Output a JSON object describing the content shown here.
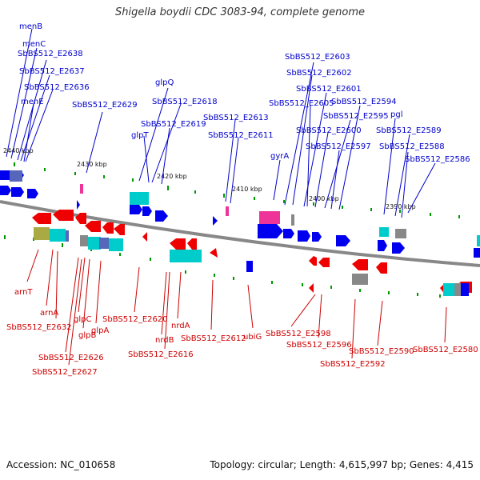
{
  "title": "Shigella boydii CDC 3083-94, complete genome",
  "footer": {
    "accession": "Accession: NC_010658",
    "topology": "Topology: circular; Length: 4,615,997 bp; Genes: 4,415"
  },
  "colors": {
    "forward_gene": "#0000ee",
    "reverse_gene": "#ee0000",
    "backbone": "#888888",
    "tick": "#009900",
    "cyan_feature": "#00cccc",
    "magenta_feature": "#ee3399"
  },
  "scale_labels": [
    "2440 kbp",
    "2430 kbp",
    "2420 kbp",
    "2410 kbp",
    "2400 kbp",
    "2390 kbp"
  ],
  "top_labels": [
    "menB",
    "menC",
    "SbBS512_E2638",
    "SbBS512_E2637",
    "SbBS512_E2636",
    "menE",
    "SbBS512_E2629",
    "glpQ",
    "SbBS512_E2618",
    "SbBS512_E2619",
    "glpT",
    "SbBS512_E2613",
    "SbBS512_E2611",
    "gyrA",
    "SbBS512_E2603",
    "SbBS512_E2602",
    "SbBS512_E2601",
    "SbBS512_E2605",
    "SbBS512_E2594",
    "SbBS512_E2595",
    "SbBS512_E2600",
    "SbBS512_E2597",
    "pgl",
    "SbBS512_E2589",
    "SbBS512_E2588",
    "SbBS512_E2586"
  ],
  "bottom_labels": [
    "arnT",
    "arnA",
    "SbBS512_E2632",
    "glpC",
    "glpB",
    "glpA",
    "SbBS512_E2626",
    "SbBS512_E2627",
    "SbBS512_E2620",
    "nrdB",
    "nrdA",
    "SbBS512_E2616",
    "SbBS512_E2612",
    "ubiG",
    "SbBS512_E2598",
    "SbBS512_E2596",
    "SbBS512_E2590",
    "SbBS512_E2592",
    "SbBS512_E2580"
  ]
}
